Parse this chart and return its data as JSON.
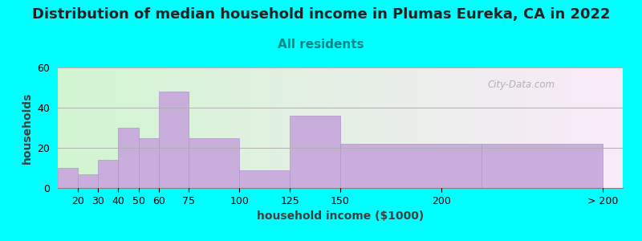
{
  "title": "Distribution of median household income in Plumas Eureka, CA in 2022",
  "subtitle": "All residents",
  "xlabel": "household income ($1000)",
  "ylabel": "households",
  "bg_color": "#00FFFF",
  "bar_color": "#C9AEDD",
  "bar_edge_color": "#B095C8",
  "values": [
    10,
    7,
    14,
    30,
    25,
    48,
    25,
    9,
    36,
    22,
    22
  ],
  "bar_lefts": [
    10,
    20,
    30,
    40,
    50,
    60,
    75,
    100,
    125,
    150,
    220
  ],
  "bar_widths": [
    10,
    10,
    10,
    10,
    10,
    15,
    25,
    25,
    25,
    70,
    60
  ],
  "tick_positions": [
    20,
    30,
    40,
    50,
    60,
    75,
    100,
    125,
    150,
    200,
    280
  ],
  "tick_labels": [
    "20",
    "30",
    "40",
    "50",
    "60",
    "75",
    "100",
    "125",
    "150",
    "200",
    "> 200"
  ],
  "xlim": [
    10,
    290
  ],
  "ylim": [
    0,
    60
  ],
  "yticks": [
    0,
    20,
    40,
    60
  ],
  "watermark": "City-Data.com",
  "title_fontsize": 13,
  "subtitle_fontsize": 11,
  "axis_label_fontsize": 10,
  "tick_fontsize": 9
}
